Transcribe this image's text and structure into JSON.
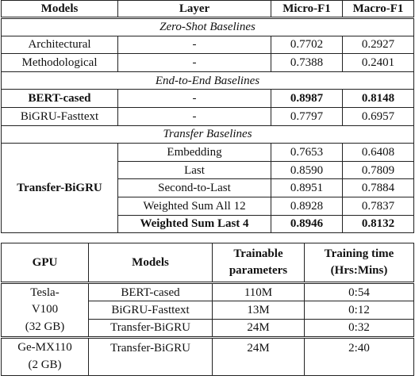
{
  "table1": {
    "headers": [
      "Models",
      "Layer",
      "Micro-F1",
      "Macro-F1"
    ],
    "sections": [
      {
        "title": "Zero-Shot Baselines",
        "rows": [
          {
            "model": "Architectural",
            "layer": "-",
            "micro": "0.7702",
            "macro": "0.2927",
            "bold": false
          },
          {
            "model": "Methodological",
            "layer": "-",
            "micro": "0.7388",
            "macro": "0.2401",
            "bold": false
          }
        ]
      },
      {
        "title": "End-to-End Baselines",
        "rows": [
          {
            "model": "BERT-cased",
            "layer": "-",
            "micro": "0.8987",
            "macro": "0.8148",
            "bold": true
          },
          {
            "model": "BiGRU-Fasttext",
            "layer": "-",
            "micro": "0.7797",
            "macro": "0.6957",
            "bold": false
          }
        ]
      },
      {
        "title": "Transfer Baselines",
        "model": "Transfer-BiGRU",
        "rows": [
          {
            "layer": "Embedding",
            "micro": "0.7653",
            "macro": "0.6408",
            "bold": false
          },
          {
            "layer": "Last",
            "micro": "0.8590",
            "macro": "0.7809",
            "bold": false
          },
          {
            "layer": "Second-to-Last",
            "micro": "0.8951",
            "macro": "0.7884",
            "bold": false
          },
          {
            "layer": "Weighted Sum All 12",
            "micro": "0.8928",
            "macro": "0.7837",
            "bold": false
          },
          {
            "layer": "Weighted Sum Last 4",
            "micro": "0.8946",
            "macro": "0.8132",
            "bold": true
          }
        ]
      }
    ]
  },
  "table2": {
    "headers": [
      "GPU",
      "Models",
      "Trainable parameters",
      "Training time (Hrs:Mins)"
    ],
    "groups": [
      {
        "gpu": "Tesla-V100 (32 GB)",
        "gpu_lines": [
          "Tesla-",
          "V100",
          "(32 GB)"
        ],
        "rows": [
          {
            "model": "BERT-cased",
            "params": "110M",
            "time": "0:54"
          },
          {
            "model": "BiGRU-Fasttext",
            "params": "13M",
            "time": "0:12"
          },
          {
            "model": "Transfer-BiGRU",
            "params": "24M",
            "time": "0:32"
          }
        ]
      },
      {
        "gpu": "Ge-MX110 (2 GB)",
        "gpu_lines": [
          "Ge-MX110",
          "(2 GB)"
        ],
        "rows": [
          {
            "model": "Transfer-BiGRU",
            "params": "24M",
            "time": "2:40"
          }
        ]
      }
    ]
  }
}
